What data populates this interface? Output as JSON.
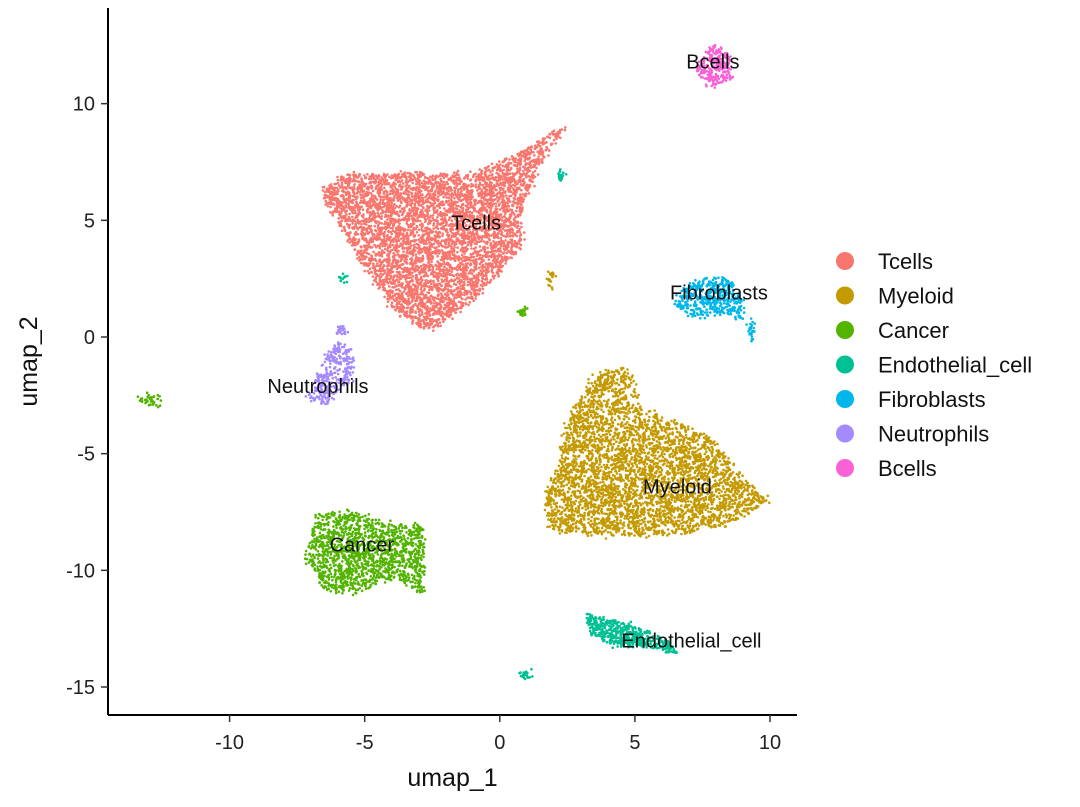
{
  "chart_data": {
    "type": "scatter",
    "xlabel": "umap_1",
    "ylabel": "umap_2",
    "xlim": [
      -14.5,
      11
    ],
    "ylim": [
      -16.2,
      14.1
    ],
    "xticks": [
      -10,
      -5,
      0,
      5,
      10
    ],
    "yticks": [
      -15,
      -10,
      -5,
      0,
      5,
      10
    ],
    "grid": false,
    "legend_position": "right",
    "clusters": [
      {
        "name": "Tcells",
        "color": "#F8766D",
        "label_pos": [
          -1.8,
          4.6
        ],
        "points": 5200,
        "hull": [
          [
            -6.5,
            6.5
          ],
          [
            -5.5,
            7.0
          ],
          [
            -3.0,
            7.0
          ],
          [
            -1.0,
            7.0
          ],
          [
            0.5,
            7.8
          ],
          [
            2.5,
            9.1
          ],
          [
            1.5,
            7.5
          ],
          [
            0.8,
            5.5
          ],
          [
            0.8,
            4.0
          ],
          [
            0.0,
            2.8
          ],
          [
            -1.0,
            1.5
          ],
          [
            -2.5,
            0.3
          ],
          [
            -3.0,
            0.4
          ],
          [
            -4.0,
            1.3
          ],
          [
            -5.0,
            3.0
          ],
          [
            -6.0,
            5.0
          ],
          [
            -6.5,
            5.8
          ]
        ]
      },
      {
        "name": "Myeloid",
        "color": "#C49A00",
        "label_pos": [
          5.3,
          -6.7
        ],
        "points": 4000,
        "hull": [
          [
            3.5,
            -1.5
          ],
          [
            4.8,
            -1.3
          ],
          [
            5.2,
            -3.0
          ],
          [
            6.5,
            -3.6
          ],
          [
            8.0,
            -4.5
          ],
          [
            9.0,
            -6.0
          ],
          [
            10.0,
            -7.0
          ],
          [
            8.5,
            -8.0
          ],
          [
            6.5,
            -8.5
          ],
          [
            4.0,
            -8.5
          ],
          [
            1.8,
            -8.3
          ],
          [
            1.6,
            -7.0
          ],
          [
            2.2,
            -5.5
          ],
          [
            2.3,
            -4.0
          ],
          [
            3.0,
            -2.5
          ]
        ]
      },
      {
        "name": "Cancer",
        "color": "#53B400",
        "label_pos": [
          -6.3,
          -9.2
        ],
        "points": 1500,
        "hull": [
          [
            -6.8,
            -7.6
          ],
          [
            -5.5,
            -7.4
          ],
          [
            -3.8,
            -8.1
          ],
          [
            -2.8,
            -8.0
          ],
          [
            -2.8,
            -9.6
          ],
          [
            -2.8,
            -11.1
          ],
          [
            -3.9,
            -10.3
          ],
          [
            -5.3,
            -11.0
          ],
          [
            -6.5,
            -10.8
          ],
          [
            -7.2,
            -9.5
          ]
        ]
      },
      {
        "name": "Endothelial_cell",
        "color": "#00C094",
        "label_pos": [
          4.5,
          -13.3
        ],
        "points": 500,
        "hull": [
          [
            3.2,
            -11.9
          ],
          [
            4.8,
            -12.3
          ],
          [
            6.2,
            -13.0
          ],
          [
            6.6,
            -13.6
          ],
          [
            5.5,
            -13.3
          ],
          [
            4.2,
            -13.2
          ],
          [
            3.4,
            -12.7
          ]
        ]
      },
      {
        "name": "Fibroblasts",
        "color": "#00B6EB",
        "label_pos": [
          6.3,
          1.6
        ],
        "points": 450,
        "hull": [
          [
            7.5,
            2.5
          ],
          [
            8.4,
            2.6
          ],
          [
            8.9,
            1.8
          ],
          [
            9.2,
            0.8
          ],
          [
            8.2,
            0.9
          ],
          [
            7.0,
            0.9
          ],
          [
            6.4,
            1.4
          ],
          [
            6.8,
            2.1
          ]
        ]
      },
      {
        "name": "Neutrophils",
        "color": "#A58AFF",
        "label_pos": [
          -8.6,
          -2.4
        ],
        "points": 300,
        "hull": [
          [
            -6.1,
            -0.2
          ],
          [
            -5.3,
            -0.5
          ],
          [
            -5.6,
            -2.0
          ],
          [
            -6.4,
            -2.9
          ],
          [
            -7.2,
            -2.7
          ],
          [
            -6.6,
            -1.3
          ]
        ]
      },
      {
        "name": "Bcells",
        "color": "#FB61D7",
        "label_pos": [
          6.9,
          11.5
        ],
        "points": 250,
        "hull": [
          [
            7.9,
            12.6
          ],
          [
            8.5,
            12.1
          ],
          [
            8.6,
            11.1
          ],
          [
            7.9,
            10.7
          ],
          [
            7.3,
            11.3
          ],
          [
            7.5,
            12.1
          ]
        ]
      }
    ],
    "legend": [
      {
        "label": "Tcells",
        "color": "#F8766D"
      },
      {
        "label": "Myeloid",
        "color": "#C49A00"
      },
      {
        "label": "Cancer",
        "color": "#53B400"
      },
      {
        "label": "Endothelial_cell",
        "color": "#00C094"
      },
      {
        "label": "Fibroblasts",
        "color": "#00B6EB"
      },
      {
        "label": "Neutrophils",
        "color": "#A58AFF"
      },
      {
        "label": "Bcells",
        "color": "#FB61D7"
      }
    ],
    "satellites": [
      {
        "cluster": "Cancer",
        "center": [
          -12.9,
          -2.7
        ],
        "spread": [
          0.4,
          0.4
        ],
        "points": 40
      },
      {
        "cluster": "Neutrophils",
        "center": [
          -5.9,
          0.3
        ],
        "spread": [
          0.25,
          0.25
        ],
        "points": 25
      },
      {
        "cluster": "Endothelial_cell",
        "center": [
          -5.8,
          2.5
        ],
        "spread": [
          0.2,
          0.2
        ],
        "points": 15
      },
      {
        "cluster": "Endothelial_cell",
        "center": [
          2.3,
          6.9
        ],
        "spread": [
          0.2,
          0.3
        ],
        "points": 20
      },
      {
        "cluster": "Cancer",
        "center": [
          0.8,
          1.1
        ],
        "spread": [
          0.2,
          0.2
        ],
        "points": 25
      },
      {
        "cluster": "Myeloid",
        "center": [
          1.9,
          2.5
        ],
        "spread": [
          0.15,
          0.4
        ],
        "points": 20
      },
      {
        "cluster": "Endothelial_cell",
        "center": [
          1.0,
          -14.5
        ],
        "spread": [
          0.3,
          0.2
        ],
        "points": 25
      },
      {
        "cluster": "Fibroblasts",
        "center": [
          9.3,
          0.2
        ],
        "spread": [
          0.15,
          0.4
        ],
        "points": 25
      }
    ]
  }
}
